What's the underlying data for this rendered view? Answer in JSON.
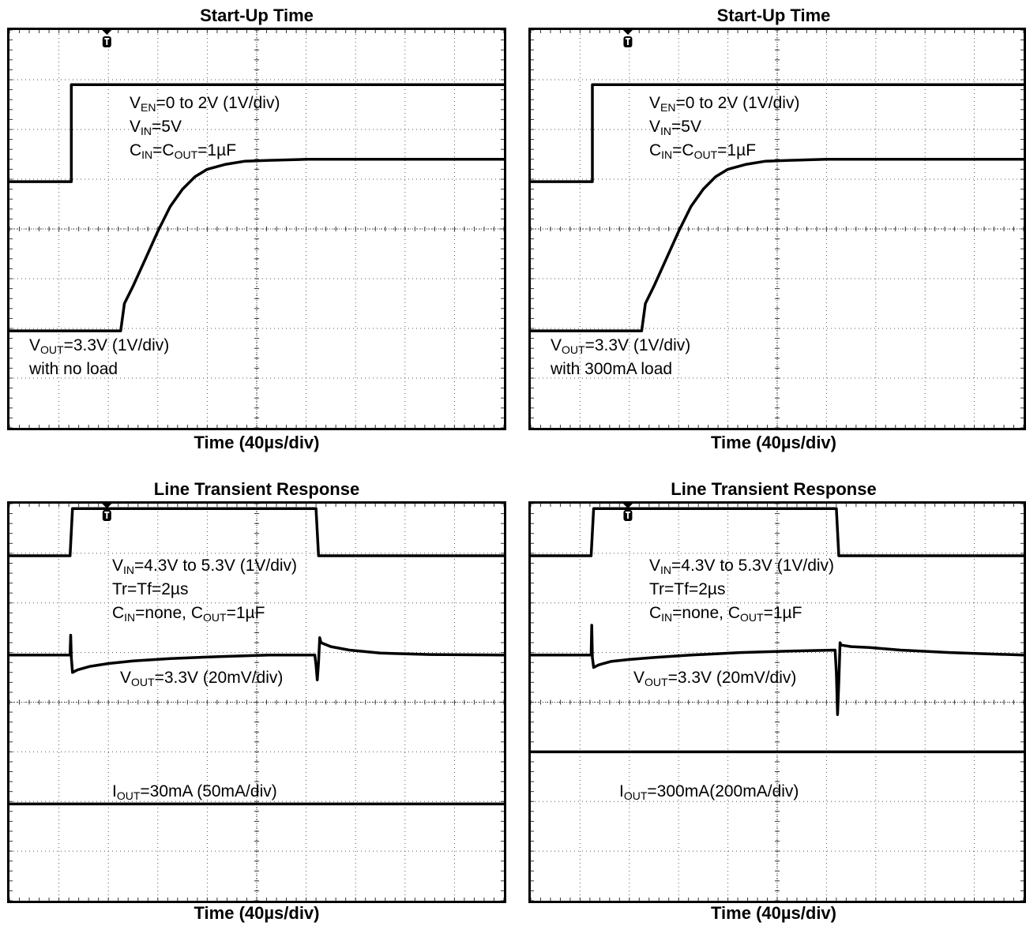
{
  "chart_data": [
    {
      "type": "line",
      "title": "Start-Up Time",
      "xlabel": "Time (40µs/div)",
      "divisions": {
        "x": 10,
        "y": 8
      },
      "xlim": [
        0,
        400
      ],
      "grid": true,
      "trigger_marker": true,
      "annotations": [
        {
          "id": "en",
          "segments": [
            [
              "V",
              "EN",
              "=0 to 2V (1V/div)"
            ],
            [
              "V",
              "IN",
              "=5V"
            ],
            [
              "C",
              "IN",
              "=C"
            ],
            [
              "",
              "OUT",
              "=1µF"
            ]
          ],
          "lines": [
            [
              "V",
              "EN",
              "=0 to 2V (1V/div)"
            ],
            [
              "V",
              "IN",
              "=5V"
            ],
            [
              "C",
              "IN",
              "=C",
              "OUT",
              "=1µF"
            ]
          ]
        },
        {
          "id": "out",
          "lines": [
            [
              "V",
              "OUT",
              "=3.3V (1V/div)"
            ],
            [
              "with no load"
            ]
          ]
        }
      ],
      "series": [
        {
          "trace": "enable",
          "x": [
            0,
            50,
            50,
            400
          ],
          "y": [
            4.95,
            4.95,
            6.9,
            6.9
          ]
        },
        {
          "trace": "output",
          "x": [
            0,
            90,
            93,
            100,
            110,
            120,
            130,
            140,
            150,
            160,
            175,
            190,
            210,
            240,
            280,
            340,
            400
          ],
          "y": [
            1.95,
            1.95,
            2.5,
            2.85,
            3.4,
            3.95,
            4.45,
            4.8,
            5.05,
            5.2,
            5.3,
            5.36,
            5.38,
            5.4,
            5.4,
            5.4,
            5.4
          ]
        }
      ]
    },
    {
      "type": "line",
      "title": "Start-Up Time",
      "xlabel": "Time (40µs/div)",
      "divisions": {
        "x": 10,
        "y": 8
      },
      "xlim": [
        0,
        400
      ],
      "grid": true,
      "trigger_marker": true,
      "annotations": [
        {
          "id": "en",
          "lines": [
            [
              "V",
              "EN",
              "=0 to 2V (1V/div)"
            ],
            [
              "V",
              "IN",
              "=5V"
            ],
            [
              "C",
              "IN",
              "=C",
              "OUT",
              "=1µF"
            ]
          ]
        },
        {
          "id": "out",
          "lines": [
            [
              "V",
              "OUT",
              "=3.3V (1V/div)"
            ],
            [
              "with 300mA load"
            ]
          ]
        }
      ],
      "series": [
        {
          "trace": "enable",
          "x": [
            0,
            50,
            50,
            400
          ],
          "y": [
            4.95,
            4.95,
            6.9,
            6.9
          ]
        },
        {
          "trace": "output",
          "x": [
            0,
            90,
            93,
            100,
            110,
            120,
            130,
            140,
            150,
            160,
            175,
            190,
            210,
            240,
            280,
            340,
            400
          ],
          "y": [
            1.95,
            1.95,
            2.5,
            2.85,
            3.4,
            3.95,
            4.45,
            4.8,
            5.05,
            5.2,
            5.3,
            5.36,
            5.38,
            5.4,
            5.4,
            5.4,
            5.4
          ]
        }
      ]
    },
    {
      "type": "line",
      "title": "Line Transient Response",
      "xlabel": "Time (40µs/div)",
      "divisions": {
        "x": 10,
        "y": 8
      },
      "xlim": [
        0,
        400
      ],
      "grid": true,
      "trigger_marker": true,
      "annotations": [
        {
          "id": "in",
          "lines": [
            [
              "V",
              "IN",
              "=4.3V to 5.3V (1V/div)"
            ],
            [
              "Tr=Tf=2µs"
            ],
            [
              "C",
              "IN",
              "=none, C",
              "OUT",
              "=1µF"
            ]
          ]
        },
        {
          "id": "out",
          "lines": [
            [
              "V",
              "OUT",
              "=3.3V (20mV/div)"
            ]
          ]
        },
        {
          "id": "iout",
          "lines": [
            [
              "I",
              "OUT",
              "=30mA (50mA/div)"
            ]
          ]
        }
      ],
      "series": [
        {
          "trace": "input",
          "x": [
            0,
            49,
            51,
            248,
            250,
            400
          ],
          "y": [
            6.95,
            6.95,
            7.9,
            7.9,
            6.95,
            6.95
          ]
        },
        {
          "trace": "output",
          "x": [
            0,
            49,
            49.5,
            50,
            51,
            55,
            65,
            80,
            100,
            130,
            170,
            210,
            247,
            248,
            249,
            250,
            251,
            252,
            260,
            275,
            300,
            340,
            400
          ],
          "y": [
            4.95,
            4.95,
            5.35,
            4.9,
            4.6,
            4.65,
            4.72,
            4.78,
            4.83,
            4.88,
            4.92,
            4.95,
            4.95,
            4.75,
            4.45,
            4.8,
            5.3,
            5.2,
            5.12,
            5.05,
            4.99,
            4.96,
            4.95
          ]
        },
        {
          "trace": "current",
          "x": [
            0,
            400
          ],
          "y": [
            1.95,
            1.95
          ]
        }
      ]
    },
    {
      "type": "line",
      "title": "Line Transient Response",
      "xlabel": "Time (40µs/div)",
      "divisions": {
        "x": 10,
        "y": 8
      },
      "xlim": [
        0,
        400
      ],
      "grid": true,
      "trigger_marker": true,
      "annotations": [
        {
          "id": "in",
          "lines": [
            [
              "V",
              "IN",
              "=4.3V to 5.3V (1V/div)"
            ],
            [
              "Tr=Tf=2µs"
            ],
            [
              "C",
              "IN",
              "=none, C",
              "OUT",
              "=1µF"
            ]
          ]
        },
        {
          "id": "out",
          "lines": [
            [
              "V",
              "OUT",
              "=3.3V (20mV/div)"
            ]
          ]
        },
        {
          "id": "iout",
          "lines": [
            [
              "I",
              "OUT",
              "=300mA(200mA/div)"
            ]
          ]
        }
      ],
      "series": [
        {
          "trace": "input",
          "x": [
            0,
            49,
            51,
            248,
            250,
            400
          ],
          "y": [
            6.95,
            6.95,
            7.9,
            7.9,
            6.95,
            6.95
          ]
        },
        {
          "trace": "output",
          "x": [
            0,
            49,
            49.5,
            50,
            51,
            55,
            65,
            80,
            100,
            130,
            170,
            210,
            247,
            248,
            249,
            250,
            251,
            252,
            260,
            275,
            300,
            340,
            400
          ],
          "y": [
            4.95,
            4.95,
            5.55,
            4.9,
            4.7,
            4.75,
            4.82,
            4.86,
            4.9,
            4.95,
            5.0,
            5.03,
            5.05,
            4.6,
            3.75,
            4.4,
            5.2,
            5.15,
            5.12,
            5.1,
            5.05,
            5.0,
            4.95
          ]
        },
        {
          "trace": "current",
          "x": [
            0,
            400
          ],
          "y": [
            3.0,
            3.0
          ]
        }
      ]
    }
  ]
}
